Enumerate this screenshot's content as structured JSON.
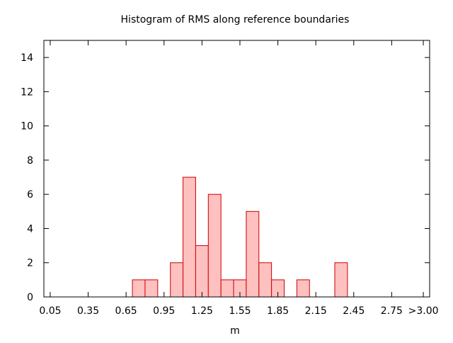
{
  "chart_data": {
    "type": "bar",
    "title": "Histogram of RMS along reference boundaries",
    "xlabel": "m",
    "ylabel": "",
    "bin_width": 0.1,
    "x": [
      0.75,
      0.85,
      1.05,
      1.15,
      1.25,
      1.35,
      1.45,
      1.55,
      1.65,
      1.75,
      1.85,
      2.05,
      2.35
    ],
    "values": [
      1,
      1,
      2,
      7,
      3,
      6,
      1,
      1,
      5,
      2,
      1,
      1,
      2
    ],
    "xlim": [
      0.0,
      3.05
    ],
    "ylim": [
      0,
      15
    ],
    "x_ticks": [
      "0.05",
      "0.35",
      "0.65",
      "0.95",
      "1.25",
      "1.55",
      "1.85",
      "2.15",
      "2.45",
      "2.75",
      ">3.00"
    ],
    "x_tick_values": [
      0.05,
      0.35,
      0.65,
      0.95,
      1.25,
      1.55,
      1.85,
      2.15,
      2.45,
      2.75,
      3.0
    ],
    "y_ticks": [
      "0",
      "2",
      "4",
      "6",
      "8",
      "10",
      "12",
      "14"
    ],
    "y_tick_values": [
      0,
      2,
      4,
      6,
      8,
      10,
      12,
      14
    ],
    "grid": false,
    "colors": {
      "bar_fill": "#ffc0c0",
      "bar_stroke": "#cc0000",
      "axis": "#000000"
    }
  }
}
